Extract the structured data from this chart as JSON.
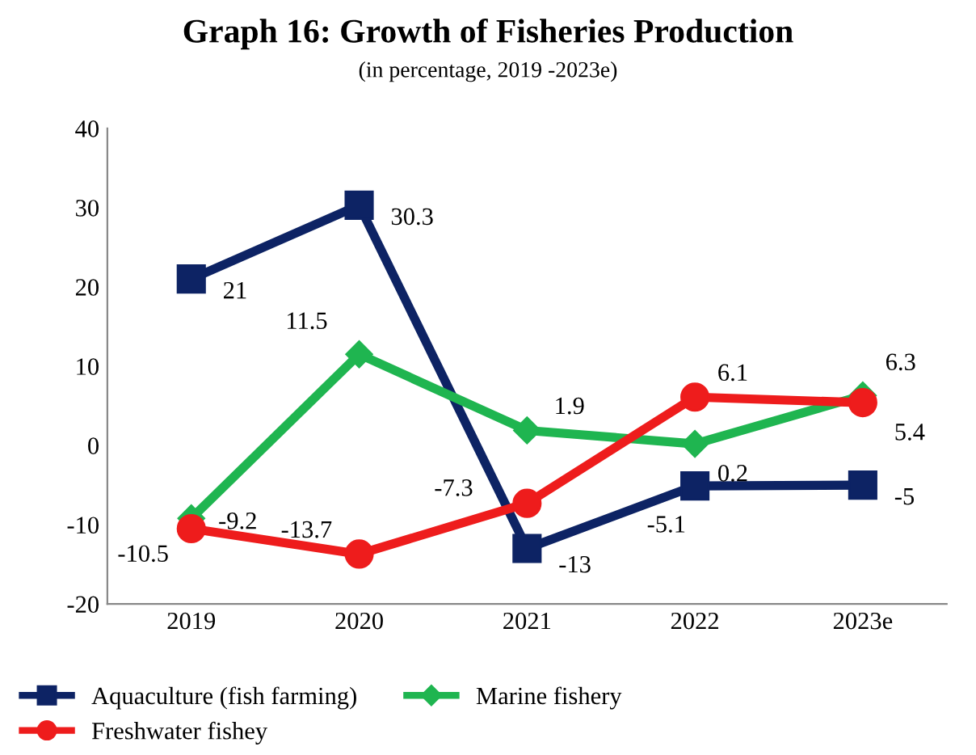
{
  "chart_data": {
    "type": "line",
    "title": "Graph 16: Growth of Fisheries Production",
    "subtitle": "(in percentage, 2019 -2023e)",
    "categories": [
      "2019",
      "2020",
      "2021",
      "2022",
      "2023e"
    ],
    "series": [
      {
        "name": "Aquaculture (fish farming)",
        "color": "#0d2364",
        "marker": "square",
        "values": [
          21,
          30.3,
          -13,
          -5.1,
          -5
        ]
      },
      {
        "name": "Marine fishery",
        "color": "#1fb550",
        "marker": "diamond",
        "values": [
          -9.2,
          11.5,
          1.9,
          0.2,
          6.3
        ]
      },
      {
        "name": "Freshwater fishey",
        "color": "#ee1c1c",
        "marker": "circle",
        "values": [
          -10.5,
          -13.7,
          -7.3,
          6.1,
          5.4
        ]
      }
    ],
    "ylim": [
      -20,
      40
    ],
    "yticks": [
      -20,
      -10,
      0,
      10,
      20,
      30,
      40
    ],
    "grid": false,
    "legend": "bottom",
    "data_labels": true,
    "line_style": "solid"
  }
}
